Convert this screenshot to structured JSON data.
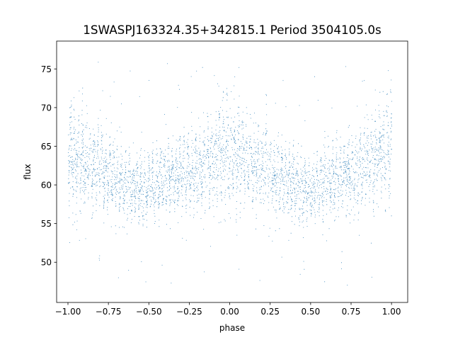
{
  "chart_data": {
    "type": "scatter",
    "title": "1SWASPJ163324.35+342815.1 Period 3504105.0s",
    "xlabel": "phase",
    "ylabel": "flux",
    "xlim": [
      -1.07,
      1.1
    ],
    "ylim": [
      44.8,
      78.6
    ],
    "x_ticks": [
      -1.0,
      -0.75,
      -0.5,
      -0.25,
      0.0,
      0.25,
      0.5,
      0.75,
      1.0
    ],
    "x_tick_labels": [
      "−1.00",
      "−0.75",
      "−0.50",
      "−0.25",
      "0.00",
      "0.25",
      "0.50",
      "0.75",
      "1.00"
    ],
    "y_ticks": [
      50,
      55,
      60,
      65,
      70,
      75
    ],
    "y_tick_labels": [
      "50",
      "55",
      "60",
      "65",
      "70",
      "75"
    ],
    "grid": false,
    "marker_color": "#1f77b4",
    "series": [
      {
        "phase": [
          -1.0,
          -0.95,
          -0.9,
          -0.85,
          -0.8,
          -0.75,
          -0.7,
          -0.65,
          -0.6,
          -0.55,
          -0.5,
          -0.45,
          -0.4,
          -0.35,
          -0.3,
          -0.25,
          -0.2,
          -0.15,
          -0.1,
          -0.05,
          0.0,
          0.05,
          0.1,
          0.15,
          0.2,
          0.25,
          0.3,
          0.35,
          0.4,
          0.45,
          0.5,
          0.55,
          0.6,
          0.65,
          0.7,
          0.75,
          0.8,
          0.85,
          0.9,
          0.95,
          1.0
        ],
        "flux_center": [
          64.5,
          63.5,
          63.0,
          62.5,
          62.0,
          61.8,
          61.0,
          60.5,
          60.0,
          59.5,
          59.5,
          60.0,
          60.5,
          61.0,
          61.5,
          61.5,
          62.0,
          62.5,
          63.5,
          64.0,
          64.5,
          63.5,
          63.0,
          62.5,
          62.0,
          61.8,
          61.0,
          60.5,
          60.0,
          59.5,
          59.5,
          60.0,
          60.5,
          61.0,
          61.5,
          61.5,
          62.0,
          62.5,
          63.5,
          64.0,
          64.5
        ],
        "flux_spread": [
          5.5,
          5.0,
          4.5,
          4.2,
          4.0,
          3.8,
          3.5,
          3.5,
          3.5,
          3.5,
          3.2,
          3.5,
          3.5,
          3.5,
          3.5,
          3.5,
          3.8,
          4.0,
          4.5,
          5.0,
          5.5,
          5.0,
          4.5,
          4.2,
          4.0,
          3.8,
          3.5,
          3.5,
          3.5,
          3.5,
          3.2,
          3.5,
          3.5,
          3.5,
          3.5,
          3.5,
          3.8,
          4.0,
          4.5,
          5.0,
          5.5
        ]
      }
    ]
  }
}
